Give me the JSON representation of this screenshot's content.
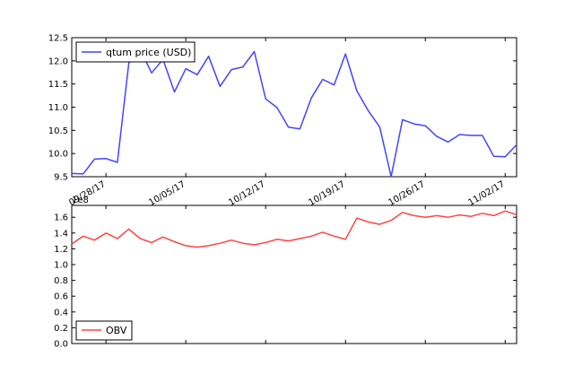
{
  "chart_data": [
    {
      "type": "line",
      "x": [
        "09/25/17",
        "09/26/17",
        "09/27/17",
        "09/28/17",
        "09/29/17",
        "09/30/17",
        "10/01/17",
        "10/02/17",
        "10/03/17",
        "10/04/17",
        "10/05/17",
        "10/06/17",
        "10/07/17",
        "10/08/17",
        "10/09/17",
        "10/10/17",
        "10/11/17",
        "10/12/17",
        "10/13/17",
        "10/14/17",
        "10/15/17",
        "10/16/17",
        "10/17/17",
        "10/18/17",
        "10/19/17",
        "10/20/17",
        "10/21/17",
        "10/22/17",
        "10/23/17",
        "10/24/17",
        "10/25/17",
        "10/26/17",
        "10/27/17",
        "10/28/17",
        "10/29/17",
        "10/30/17",
        "10/31/17",
        "11/01/17",
        "11/02/17",
        "11/03/17"
      ],
      "series": [
        {
          "name": "qtum price (USD)",
          "color": "#4444ff",
          "values": [
            9.57,
            9.56,
            9.88,
            9.89,
            9.81,
            11.95,
            12.25,
            11.74,
            12.03,
            11.33,
            11.83,
            11.7,
            12.1,
            11.45,
            11.81,
            11.87,
            12.2,
            11.18,
            10.99,
            10.57,
            10.53,
            11.2,
            11.6,
            11.48,
            12.15,
            11.35,
            10.92,
            10.57,
            9.5,
            10.73,
            10.64,
            10.6,
            10.37,
            10.25,
            10.41,
            10.39,
            10.39,
            9.94,
            9.93,
            10.19
          ]
        }
      ],
      "xticks": [
        "09/28/17",
        "10/05/17",
        "10/12/17",
        "10/19/17",
        "10/26/17",
        "11/02/17"
      ],
      "yticks": [
        "9.5",
        "10.0",
        "10.5",
        "11.0",
        "11.5",
        "12.0",
        "12.5"
      ],
      "ylim": [
        9.5,
        12.5
      ],
      "legend": "top-left",
      "grid": false
    },
    {
      "type": "line",
      "x": [
        "09/25/17",
        "09/26/17",
        "09/27/17",
        "09/28/17",
        "09/29/17",
        "09/30/17",
        "10/01/17",
        "10/02/17",
        "10/03/17",
        "10/04/17",
        "10/05/17",
        "10/06/17",
        "10/07/17",
        "10/08/17",
        "10/09/17",
        "10/10/17",
        "10/11/17",
        "10/12/17",
        "10/13/17",
        "10/14/17",
        "10/15/17",
        "10/16/17",
        "10/17/17",
        "10/18/17",
        "10/19/17",
        "10/20/17",
        "10/21/17",
        "10/22/17",
        "10/23/17",
        "10/24/17",
        "10/25/17",
        "10/26/17",
        "10/27/17",
        "10/28/17",
        "10/29/17",
        "10/30/17",
        "10/31/17",
        "11/01/17",
        "11/02/17",
        "11/03/17"
      ],
      "series": [
        {
          "name": "OBV",
          "color": "#ff4444",
          "values": [
            1.26,
            1.36,
            1.31,
            1.4,
            1.33,
            1.45,
            1.33,
            1.28,
            1.35,
            1.29,
            1.24,
            1.22,
            1.24,
            1.27,
            1.31,
            1.27,
            1.25,
            1.28,
            1.32,
            1.3,
            1.33,
            1.36,
            1.41,
            1.36,
            1.32,
            1.59,
            1.54,
            1.51,
            1.56,
            1.66,
            1.62,
            1.6,
            1.62,
            1.6,
            1.63,
            1.61,
            1.65,
            1.62,
            1.68,
            1.63
          ]
        }
      ],
      "offset_label": "1e8",
      "yticks": [
        "0.0",
        "0.2",
        "0.4",
        "0.6",
        "0.8",
        "1.0",
        "1.2",
        "1.4",
        "1.6"
      ],
      "ylim": [
        0.0,
        1.75
      ],
      "legend": "bottom-left",
      "grid": false
    }
  ]
}
